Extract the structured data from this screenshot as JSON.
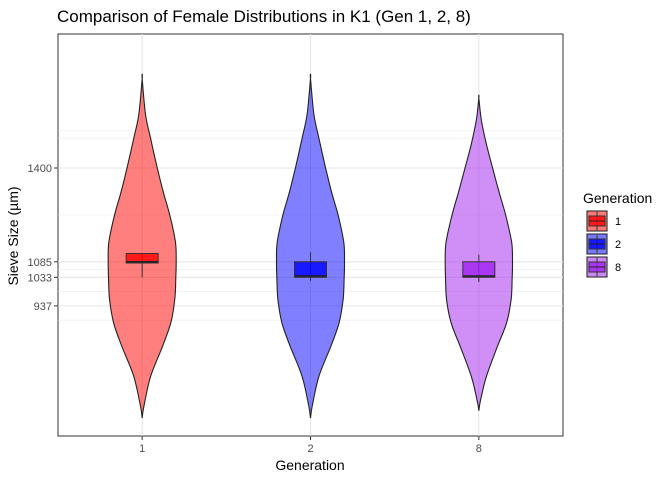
{
  "chart_data": {
    "type": "violin",
    "title": "Comparison of Female Distributions in K1 (Gen 1, 2, 8)",
    "xlabel": "Generation",
    "ylabel": "Sieve Size (µm)",
    "categories": [
      "1",
      "2",
      "8"
    ],
    "y_ticks": [
      937,
      1033,
      1085,
      1400
    ],
    "ylim": [
      500,
      1850
    ],
    "grid": true,
    "legend": {
      "title": "Generation",
      "position": "right"
    },
    "series": [
      {
        "name": "1",
        "fill": "#FF0000",
        "violin": {
          "min": 560,
          "max": 1700,
          "max_halfwidth": 0.202,
          "profile": [
            [
              560,
              0.0
            ],
            [
              600,
              0.01
            ],
            [
              700,
              0.05
            ],
            [
              800,
              0.12
            ],
            [
              880,
              0.17
            ],
            [
              960,
              0.194
            ],
            [
              1033,
              0.2
            ],
            [
              1085,
              0.202
            ],
            [
              1150,
              0.198
            ],
            [
              1240,
              0.165
            ],
            [
              1320,
              0.125
            ],
            [
              1400,
              0.09
            ],
            [
              1500,
              0.05
            ],
            [
              1580,
              0.02
            ],
            [
              1700,
              0.0
            ]
          ]
        },
        "box": {
          "q1": 1081,
          "median": 1085,
          "q3": 1113,
          "whisker_low": 1033,
          "whisker_high": 1113
        }
      },
      {
        "name": "2",
        "fill": "#0000FF",
        "violin": {
          "min": 560,
          "max": 1700,
          "max_halfwidth": 0.202,
          "profile": [
            [
              560,
              0.0
            ],
            [
              600,
              0.01
            ],
            [
              700,
              0.05
            ],
            [
              800,
              0.12
            ],
            [
              880,
              0.17
            ],
            [
              960,
              0.194
            ],
            [
              1033,
              0.2
            ],
            [
              1085,
              0.202
            ],
            [
              1150,
              0.198
            ],
            [
              1240,
              0.165
            ],
            [
              1320,
              0.125
            ],
            [
              1400,
              0.09
            ],
            [
              1500,
              0.05
            ],
            [
              1580,
              0.02
            ],
            [
              1700,
              0.0
            ]
          ]
        },
        "box": {
          "q1": 1033,
          "median": 1037,
          "q3": 1085,
          "whisker_low": 1021,
          "whisker_high": 1117
        }
      },
      {
        "name": "8",
        "fill": "#A020F0",
        "violin": {
          "min": 585,
          "max": 1635,
          "max_halfwidth": 0.2,
          "profile": [
            [
              585,
              0.0
            ],
            [
              620,
              0.01
            ],
            [
              700,
              0.045
            ],
            [
              800,
              0.11
            ],
            [
              880,
              0.165
            ],
            [
              960,
              0.192
            ],
            [
              1033,
              0.198
            ],
            [
              1085,
              0.2
            ],
            [
              1150,
              0.195
            ],
            [
              1240,
              0.16
            ],
            [
              1320,
              0.12
            ],
            [
              1400,
              0.082
            ],
            [
              1480,
              0.045
            ],
            [
              1560,
              0.015
            ],
            [
              1635,
              0.0
            ]
          ]
        },
        "box": {
          "q1": 1033,
          "median": 1037,
          "q3": 1085,
          "whisker_low": 1017,
          "whisker_high": 1109
        }
      }
    ]
  }
}
